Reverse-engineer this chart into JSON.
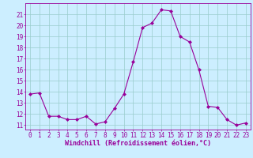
{
  "x": [
    0,
    1,
    2,
    3,
    4,
    5,
    6,
    7,
    8,
    9,
    10,
    11,
    12,
    13,
    14,
    15,
    16,
    17,
    18,
    19,
    20,
    21,
    22,
    23
  ],
  "y": [
    13.8,
    13.9,
    11.8,
    11.8,
    11.5,
    11.5,
    11.8,
    11.1,
    11.3,
    12.5,
    13.8,
    16.7,
    19.8,
    20.2,
    21.4,
    21.3,
    19.0,
    18.5,
    16.0,
    12.7,
    12.6,
    11.5,
    11.0,
    11.2
  ],
  "line_color": "#990099",
  "marker_color": "#990099",
  "bg_color": "#cceeff",
  "grid_color": "#99cccc",
  "xlabel": "Windchill (Refroidissement éolien,°C)",
  "ylabel_ticks": [
    11,
    12,
    13,
    14,
    15,
    16,
    17,
    18,
    19,
    20,
    21
  ],
  "xlim": [
    -0.5,
    23.5
  ],
  "ylim": [
    10.6,
    22.0
  ],
  "tick_color": "#990099",
  "tick_fontsize": 5.5,
  "xlabel_fontsize": 6.0
}
